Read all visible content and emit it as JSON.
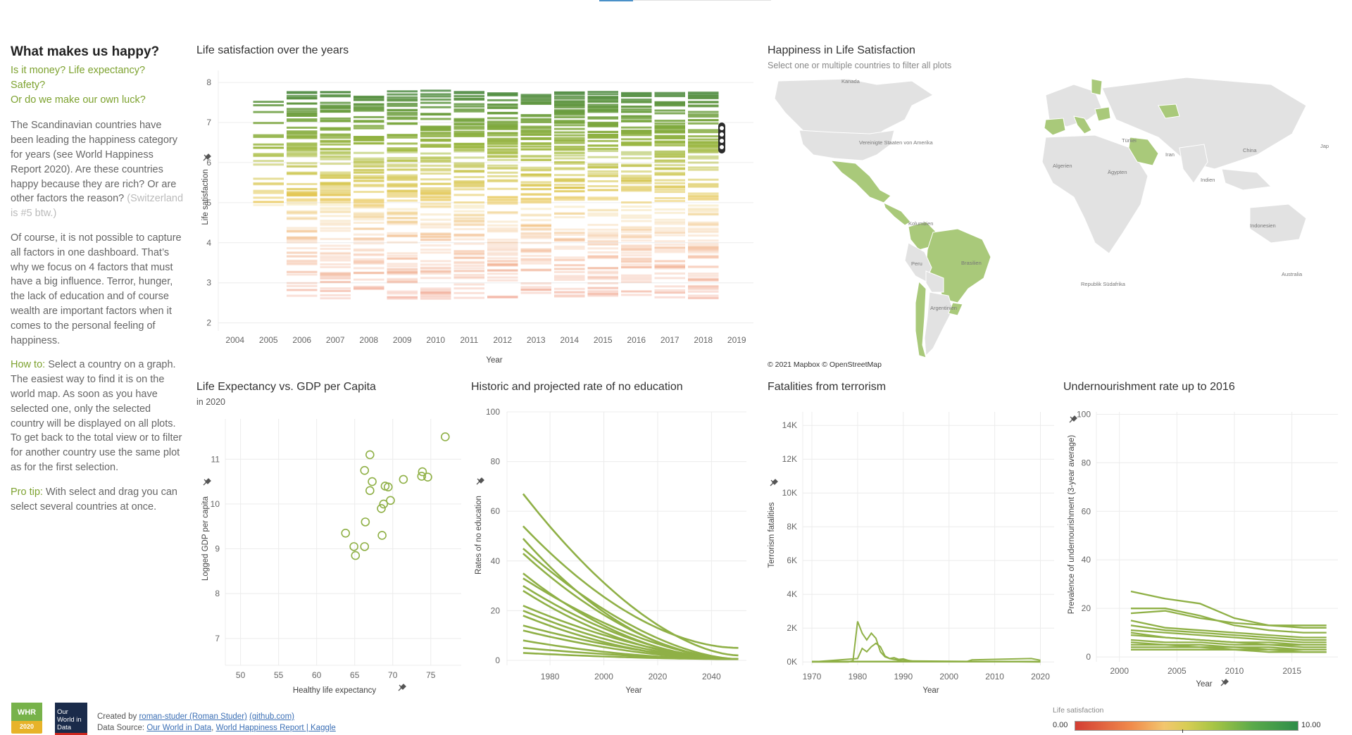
{
  "sidebar": {
    "title": "What makes us happy?",
    "subtitle_lines": [
      "Is it money? Life expectancy?",
      "Safety?",
      "Or do we make our own luck?"
    ],
    "para1": "The Scandinavian countries have been leading the happiness category for years (see World Happiness Report 2020). Are these countries happy because they are rich? Or are other factors the reason?",
    "para1_note": "(Switzerland is #5 btw.)",
    "para2": "Of course, it is not possible to capture all factors in one dashboard. That’s why we focus on 4 factors that must have a big influence. Terror, hunger, the lack of education and of course wealth are important factors when it comes to the personal feeling of happiness.",
    "howto_label": "How to:",
    "howto_text": "Select a country on a graph. The easiest way to find it is on the world map. As soon as you have selected one, only the selected country will be displayed on all plots. To get back to the total view or to filter for another country use the same plot as for the first selection.",
    "protip_label": "Pro tip:",
    "protip_text": "With select and drag you can select several countries at once."
  },
  "panels": {
    "life_sat": {
      "title": "Life satisfaction over the years"
    },
    "map": {
      "title": "Happiness in Life Satisfaction",
      "subtitle": "Select one or multiple countries to filter all plots",
      "attribution": "© 2021 Mapbox © OpenStreetMap",
      "labels": {
        "kanada": "Kanada",
        "usa": "Vereinigte Staaten von Amerika",
        "kolumbien": "Kolumbien",
        "peru": "Peru",
        "brasilien": "Brasilien",
        "argentinien": "Argentinien",
        "turkei": "Türkei",
        "algerien": "Algerien",
        "agypten": "Ägypten",
        "iran": "Iran",
        "china": "China",
        "indien": "Indien",
        "indonesien": "Indonesien",
        "republik_sudafrika": "Republik Südafrika",
        "australia": "Australia",
        "japan": "Jap"
      }
    },
    "gdp": {
      "title": "Life Expectancy vs. GDP per Capita",
      "subtitle": "in 2020"
    },
    "edu": {
      "title": "Historic and projected rate of no education"
    },
    "terror": {
      "title": "Fatalities from terrorism"
    },
    "under": {
      "title": "Undernourishment rate up to 2016"
    }
  },
  "icons": {
    "pin": "pin-icon"
  },
  "colors": {
    "accent_green": "#8fb046",
    "text_green": "#7da22f"
  },
  "chart_data": [
    {
      "id": "life_sat",
      "type": "heatmap",
      "title": "Life satisfaction over the years",
      "xlabel": "Year",
      "ylabel": "Life satisfaction",
      "x_ticks": [
        "2004",
        "2005",
        "2006",
        "2007",
        "2008",
        "2009",
        "2010",
        "2011",
        "2012",
        "2013",
        "2014",
        "2015",
        "2016",
        "2017",
        "2018",
        "2019"
      ],
      "y_ticks": [
        2,
        3,
        4,
        5,
        6,
        7,
        8
      ],
      "ylim": [
        1.8,
        8.3
      ],
      "years": [
        2005,
        2006,
        2007,
        2008,
        2009,
        2010,
        2011,
        2012,
        2013,
        2014,
        2015,
        2016,
        2017,
        2018
      ]
    },
    {
      "id": "gdp",
      "type": "scatter",
      "title": "Life Expectancy vs. GDP per Capita",
      "xlabel": "Healthy life expectancy",
      "ylabel": "Logged GDP per capita",
      "x_ticks": [
        50,
        55,
        60,
        65,
        70,
        75
      ],
      "y_ticks": [
        7,
        8,
        9,
        10,
        11
      ],
      "xlim": [
        48,
        79
      ],
      "ylim": [
        6.4,
        11.9
      ],
      "points": [
        [
          63.8,
          9.35
        ],
        [
          64.9,
          9.05
        ],
        [
          65.1,
          8.85
        ],
        [
          66.3,
          9.05
        ],
        [
          66.4,
          9.6
        ],
        [
          66.3,
          10.75
        ],
        [
          67.0,
          11.1
        ],
        [
          67.0,
          10.3
        ],
        [
          67.3,
          10.5
        ],
        [
          68.5,
          9.9
        ],
        [
          68.6,
          9.3
        ],
        [
          68.8,
          10.0
        ],
        [
          69.0,
          10.4
        ],
        [
          69.4,
          10.38
        ],
        [
          69.7,
          10.08
        ],
        [
          71.4,
          10.55
        ],
        [
          73.8,
          10.62
        ],
        [
          73.9,
          10.72
        ],
        [
          74.6,
          10.6
        ],
        [
          76.9,
          11.5
        ]
      ]
    },
    {
      "id": "edu",
      "type": "line",
      "title": "Historic and projected rate of no education",
      "xlabel": "Year",
      "ylabel": "Rates of no education",
      "x_ticks": [
        1980,
        2000,
        2020,
        2040
      ],
      "y_ticks": [
        0,
        20,
        40,
        60,
        80,
        100
      ],
      "xlim": [
        1964,
        2053
      ],
      "ylim": [
        -2,
        100
      ],
      "series_start": [
        67,
        54,
        49,
        45,
        43,
        35,
        33,
        30,
        28,
        22,
        20,
        18,
        14,
        12,
        8,
        5,
        3
      ],
      "start_year": 1970,
      "end_year": 2050
    },
    {
      "id": "terror",
      "type": "line",
      "title": "Fatalities from terrorism",
      "xlabel": "Year",
      "ylabel": "Terrorism fatalities",
      "x_ticks": [
        1970,
        1980,
        1990,
        2000,
        2010,
        2020
      ],
      "y_ticks": [
        "0K",
        "2K",
        "4K",
        "6K",
        "8K",
        "10K",
        "12K",
        "14K"
      ],
      "xlim": [
        1968,
        2023
      ],
      "ylim": [
        -200,
        14800
      ],
      "series": [
        {
          "x": [
            1970,
            1978,
            1979,
            1980,
            1981,
            1982,
            1983,
            1984,
            1985,
            1986,
            1987,
            1988,
            1989,
            1990,
            1991,
            1992,
            1995,
            2004,
            2005,
            2018,
            2020
          ],
          "y": [
            0,
            0,
            80,
            2400,
            1700,
            1300,
            1700,
            1400,
            600,
            300,
            200,
            250,
            150,
            180,
            100,
            50,
            30,
            30,
            120,
            200,
            100
          ]
        },
        {
          "x": [
            1970,
            1980,
            1981,
            1982,
            1983,
            1984,
            1985,
            1986,
            1987,
            1988,
            1989,
            1990,
            1991,
            2020
          ],
          "y": [
            0,
            200,
            800,
            600,
            900,
            1100,
            900,
            350,
            200,
            150,
            100,
            120,
            60,
            0
          ]
        }
      ]
    },
    {
      "id": "under",
      "type": "line",
      "title": "Undernourishment rate up to 2016",
      "xlabel": "Year",
      "ylabel": "Prevalence of undernourishment (3-year average)",
      "x_ticks": [
        2000,
        2005,
        2010,
        2015
      ],
      "y_ticks": [
        0,
        20,
        40,
        60,
        80,
        100
      ],
      "xlim": [
        1998,
        2019
      ],
      "ylim": [
        -2,
        101
      ],
      "years": [
        2001,
        2004,
        2007,
        2010,
        2013,
        2016,
        2018
      ],
      "series": [
        [
          27,
          24,
          22,
          16,
          13,
          12,
          12
        ],
        [
          20,
          20,
          17,
          13,
          11,
          10,
          10
        ],
        [
          18,
          19,
          16,
          14,
          13,
          13,
          13
        ],
        [
          15,
          12,
          11,
          10,
          9,
          8,
          8
        ],
        [
          13,
          11,
          10,
          9,
          8,
          7,
          7
        ],
        [
          11,
          10,
          9,
          8,
          7,
          6,
          6
        ],
        [
          9,
          8,
          7,
          6,
          5,
          5,
          5
        ],
        [
          7,
          6,
          6,
          5,
          5,
          4,
          4
        ],
        [
          6,
          5,
          5,
          4,
          4,
          3,
          3
        ],
        [
          5,
          5,
          4,
          4,
          3,
          3,
          3
        ],
        [
          4,
          4,
          4,
          3,
          3,
          2,
          2
        ],
        [
          3,
          3,
          3,
          3,
          2,
          2,
          2
        ],
        [
          10,
          8,
          7,
          6,
          6,
          5,
          5
        ]
      ]
    }
  ],
  "footer": {
    "created_by": "Created by",
    "author_link": "roman-studer (Roman Studer)",
    "author_suffix": "(github.com)",
    "data_source": "Data Source:",
    "source1": "Our World in Data",
    "source_sep": ",",
    "source2": "World Happiness Report | Kaggle",
    "logo1_top": "WHR",
    "logo1_year": "2020",
    "logo2": "Our World in Data"
  },
  "legend": {
    "title": "Life satisfaction",
    "min": "0.00",
    "max": "10.00"
  }
}
